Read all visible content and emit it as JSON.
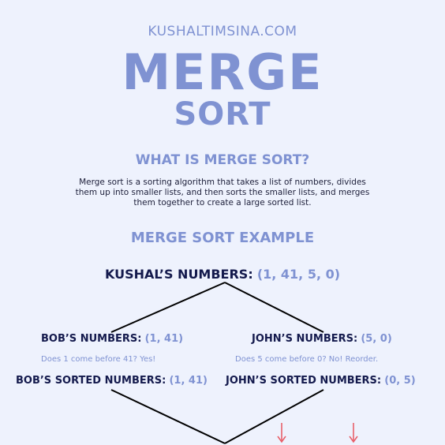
{
  "header": {
    "site": "KUSHALTIMSINA.COM",
    "title_line1": "MERGE",
    "title_line2": "SORT"
  },
  "intro": {
    "heading": "WHAT IS MERGE SORT?",
    "description": "Merge sort is a sorting algorithm that takes a list of numbers, divides them up into smaller lists, and then sorts the smaller lists, and merges them together to create a large sorted list."
  },
  "example": {
    "heading": "MERGE SORT EXAMPLE",
    "root": {
      "label": "KUSHAL’S NUMBERS:",
      "value": "(1, 41, 5, 0)"
    },
    "left": {
      "label": "BOB’S NUMBERS:",
      "value": "(1, 41)",
      "note": "Does 1 come before 41? Yes!",
      "sorted_label": "BOB’S SORTED NUMBERS:",
      "sorted_value": "(1, 41)"
    },
    "right": {
      "label": "JOHN’S NUMBERS:",
      "value": "(5, 0)",
      "note": "Does 5 come before 0? No! Reorder.",
      "sorted_label": "JOHN’S SORTED NUMBERS:",
      "sorted_value": "(0, 5)"
    },
    "line_color": "#000000",
    "arrow_color": "#e8606a",
    "dark_text_color": "#141a4d",
    "accent_color": "#7f92d2"
  }
}
